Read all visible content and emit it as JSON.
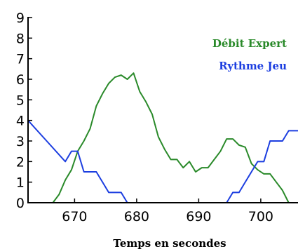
{
  "chart_data": {
    "type": "line",
    "xlabel": "Temps en secondes",
    "ylabel": "",
    "xlim": [
      662.5,
      706
    ],
    "ylim": [
      0,
      9
    ],
    "x_ticks": [
      "670",
      "680",
      "690",
      "700"
    ],
    "y_ticks": [
      "0",
      "1",
      "2",
      "3",
      "4",
      "5",
      "6",
      "7",
      "8",
      "9"
    ],
    "grid": false,
    "legend_position": "top-right",
    "series": [
      {
        "name": "Débit Expert",
        "color": "#2a8a2a",
        "x": [
          666.5,
          667.5,
          668.5,
          669.5,
          670.5,
          671.5,
          672.5,
          673.5,
          674.5,
          675.5,
          676.5,
          677.5,
          678.5,
          679.5,
          680.5,
          681.5,
          682.5,
          683.5,
          684.5,
          685.5,
          686.5,
          687.5,
          688.5,
          689.5,
          690.5,
          691.5,
          692.5,
          693.5,
          694.5,
          695.5,
          696.5,
          697.5,
          698.5,
          699.5,
          700.5,
          701.5,
          702.5,
          703.5,
          704.5
        ],
        "y": [
          0.0,
          0.4,
          1.1,
          1.6,
          2.5,
          3.0,
          3.6,
          4.7,
          5.3,
          5.8,
          6.1,
          6.2,
          6.0,
          6.3,
          5.4,
          4.9,
          4.3,
          3.2,
          2.6,
          2.1,
          2.1,
          1.7,
          2.0,
          1.5,
          1.7,
          1.7,
          2.1,
          2.5,
          3.1,
          3.1,
          2.8,
          2.7,
          1.9,
          1.6,
          1.4,
          1.4,
          1.0,
          0.6,
          0.0
        ]
      },
      {
        "name": "Rythme Jeu",
        "color": "#1c3ee0",
        "x": [
          662.5,
          665.5,
          668.5,
          669.5,
          670.5,
          671.5,
          672.5,
          673.5,
          674.5,
          675.5,
          676.5,
          677.5,
          678.5,
          694.5,
          695.5,
          696.5,
          697.5,
          698.5,
          699.5,
          700.5,
          701.5,
          702.5,
          703.5,
          704.5,
          705.5,
          706
        ],
        "y": [
          4.0,
          3.0,
          2.0,
          2.5,
          2.5,
          1.5,
          1.5,
          1.5,
          1.0,
          0.5,
          0.5,
          0.5,
          0.0,
          0.0,
          0.5,
          0.5,
          1.0,
          1.5,
          2.0,
          2.0,
          3.0,
          3.0,
          3.0,
          3.5,
          3.5,
          3.5
        ]
      }
    ]
  }
}
